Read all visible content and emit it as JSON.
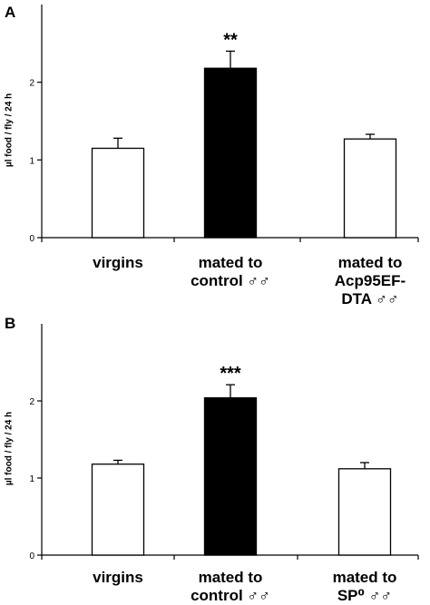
{
  "chart_data": [
    {
      "type": "bar",
      "panel_label": "A",
      "ylabel": "µl food / fly / 24 h",
      "ylim": [
        0,
        3
      ],
      "yticks": [
        "0",
        "1",
        "2"
      ],
      "categories": [
        [
          "virgins"
        ],
        [
          "mated to",
          "control ♂♂"
        ],
        [
          "mated to",
          "Acp95EF-",
          "DTA ♂♂"
        ]
      ],
      "values": [
        1.15,
        2.18,
        1.27
      ],
      "errors": [
        0.13,
        0.22,
        0.06
      ],
      "fills": [
        "#ffffff",
        "#000000",
        "#ffffff"
      ],
      "annotations": [
        "",
        "**",
        ""
      ],
      "grid": false,
      "legend": "none"
    },
    {
      "type": "bar",
      "panel_label": "B",
      "ylabel": "µl food / fly / 24 h",
      "ylim": [
        0,
        3
      ],
      "yticks": [
        "0",
        "1",
        "2"
      ],
      "categories": [
        [
          "virgins"
        ],
        [
          "mated to",
          "control ♂♂"
        ],
        [
          "mated to",
          "SP⁰ ♂♂"
        ]
      ],
      "values": [
        1.18,
        2.04,
        1.12
      ],
      "errors": [
        0.05,
        0.17,
        0.08
      ],
      "fills": [
        "#ffffff",
        "#000000",
        "#ffffff"
      ],
      "annotations": [
        "",
        "***",
        ""
      ],
      "grid": false,
      "legend": "none"
    }
  ]
}
